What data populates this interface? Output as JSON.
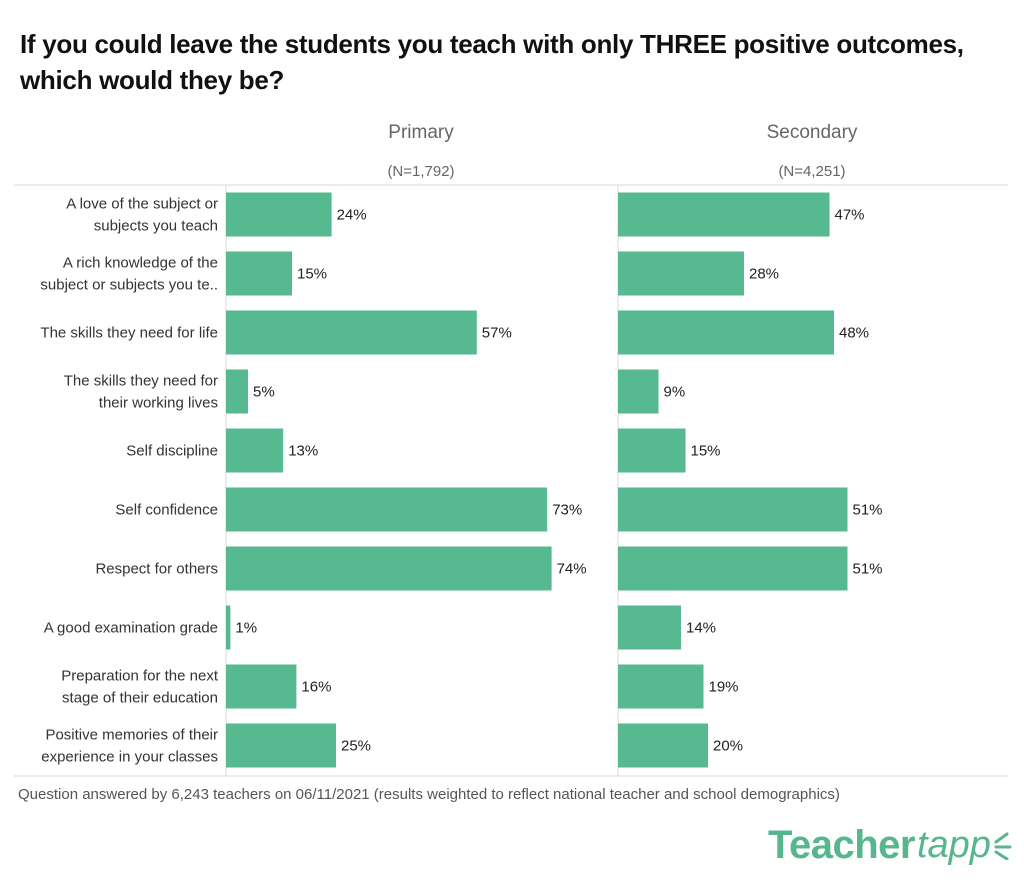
{
  "title": "If you could leave the students you teach with only THREE positive outcomes, which would they be?",
  "title_lines": [
    "If you could leave the students you teach with only THREE positive outcomes,",
    "which would they be?"
  ],
  "footnote": "Question answered by 6,243 teachers on 06/11/2021 (results weighted to reflect national teacher and school demographics)",
  "logo": {
    "main": "Teacher",
    "accent": "tapp"
  },
  "colors": {
    "bar": "#57b990",
    "grid": "#d9d9d9",
    "text": "#333333",
    "header": "#666666"
  },
  "chart_data": {
    "type": "bar",
    "orientation": "horizontal",
    "categories": [
      [
        "A love of the subject or",
        "subjects you teach"
      ],
      [
        "A rich knowledge of the",
        "subject or subjects you te.."
      ],
      [
        "The skills they need for life"
      ],
      [
        "The skills they need for",
        "their working lives"
      ],
      [
        "Self discipline"
      ],
      [
        "Self confidence"
      ],
      [
        "Respect for others"
      ],
      [
        "A good examination grade"
      ],
      [
        "Preparation for the next",
        "stage of their education"
      ],
      [
        "Positive memories of their",
        "experience in your classes"
      ]
    ],
    "series": [
      {
        "name": "Primary",
        "n_label": "(N=1,792)",
        "values": [
          24,
          15,
          57,
          5,
          13,
          73,
          74,
          1,
          16,
          25
        ],
        "labels": [
          "24%",
          "15%",
          "57%",
          "5%",
          "13%",
          "73%",
          "74%",
          "1%",
          "16%",
          "25%"
        ]
      },
      {
        "name": "Secondary",
        "n_label": "(N=4,251)",
        "values": [
          47,
          28,
          48,
          9,
          15,
          51,
          51,
          14,
          19,
          20
        ],
        "labels": [
          "47%",
          "28%",
          "48%",
          "9%",
          "15%",
          "51%",
          "51%",
          "14%",
          "19%",
          "20%"
        ]
      }
    ],
    "xlim": [
      0,
      100
    ],
    "grid": false
  }
}
